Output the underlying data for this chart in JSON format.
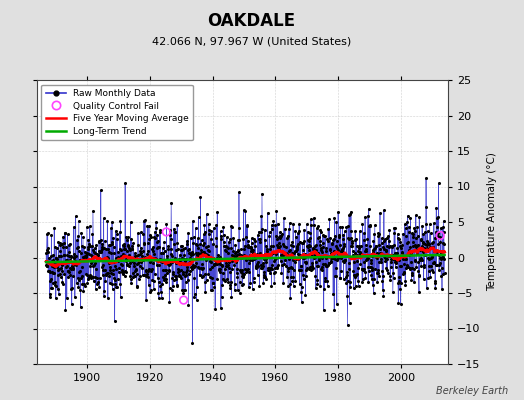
{
  "title": "OAKDALE",
  "subtitle": "42.066 N, 97.967 W (United States)",
  "ylabel": "Temperature Anomaly (°C)",
  "watermark": "Berkeley Earth",
  "year_start": 1887,
  "year_end": 2013,
  "ylim": [
    -15,
    25
  ],
  "yticks": [
    -15,
    -10,
    -5,
    0,
    5,
    10,
    15,
    20,
    25
  ],
  "xlim_start": 1884,
  "xlim_end": 2015,
  "xticks": [
    1900,
    1920,
    1940,
    1960,
    1980,
    2000
  ],
  "background_color": "#e0e0e0",
  "plot_background": "#ffffff",
  "raw_color": "#3333cc",
  "dot_color": "#000000",
  "moving_avg_color": "#ff0000",
  "trend_color": "#00aa00",
  "qc_fail_color": "#ff44ff",
  "seed": 42,
  "qc_fail_points": [
    {
      "year": 1925.3,
      "value": 3.6
    },
    {
      "year": 1930.8,
      "value": -6.0
    },
    {
      "year": 2012.5,
      "value": 3.1
    }
  ],
  "trend_slope": 0.008,
  "trend_intercept": -0.15,
  "noise_amp": 2.6
}
